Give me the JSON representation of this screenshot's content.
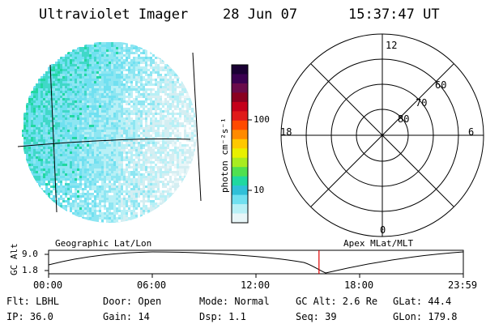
{
  "header": {
    "instrument": "Ultraviolet Imager",
    "date": "28 Jun 07",
    "time": "15:37:47 UT"
  },
  "colorbar": {
    "unit_label": "photon cm⁻²s⁻¹",
    "ticks": [
      "100",
      "10"
    ],
    "colors": [
      "#1a0033",
      "#3a0050",
      "#6a0a4a",
      "#8a0020",
      "#c4001a",
      "#e01a1a",
      "#ff4a00",
      "#ff8a00",
      "#ffc800",
      "#e8f000",
      "#a8ec20",
      "#50e050",
      "#20d8a0",
      "#30c0d8",
      "#70e0f0",
      "#b8f0f6",
      "#e8f6f8"
    ]
  },
  "polar_grid": {
    "lat_labels": [
      "80",
      "70",
      "60"
    ],
    "mlt_labels": {
      "top": "12",
      "left": "18",
      "right": "6",
      "bottom": "0"
    }
  },
  "timeline": {
    "left_label": "Geographic Lat/Lon",
    "right_label": "Apex MLat/MLT",
    "axis_label": "GC Alt",
    "y_ticks": [
      "9.0",
      "1.8"
    ],
    "x_ticks": [
      "00:00",
      "06:00",
      "12:00",
      "18:00",
      "23:59"
    ],
    "current_marker_fraction": 0.652
  },
  "status": {
    "row1": [
      {
        "key": "flt",
        "text": "Flt: LBHL"
      },
      {
        "key": "door",
        "text": "Door: Open"
      },
      {
        "key": "mode",
        "text": "Mode: Normal"
      },
      {
        "key": "gcalt",
        "text": "GC Alt: 2.6 Re"
      },
      {
        "key": "glat",
        "text": "GLat:  44.4"
      }
    ],
    "row2": [
      {
        "key": "ip",
        "text": "IP: 36.0"
      },
      {
        "key": "gain",
        "text": "Gain: 14"
      },
      {
        "key": "dsp",
        "text": "Dsp:    1.1"
      },
      {
        "key": "seq",
        "text": "Seq: 39"
      },
      {
        "key": "glon",
        "text": "GLon: 179.8"
      }
    ]
  }
}
